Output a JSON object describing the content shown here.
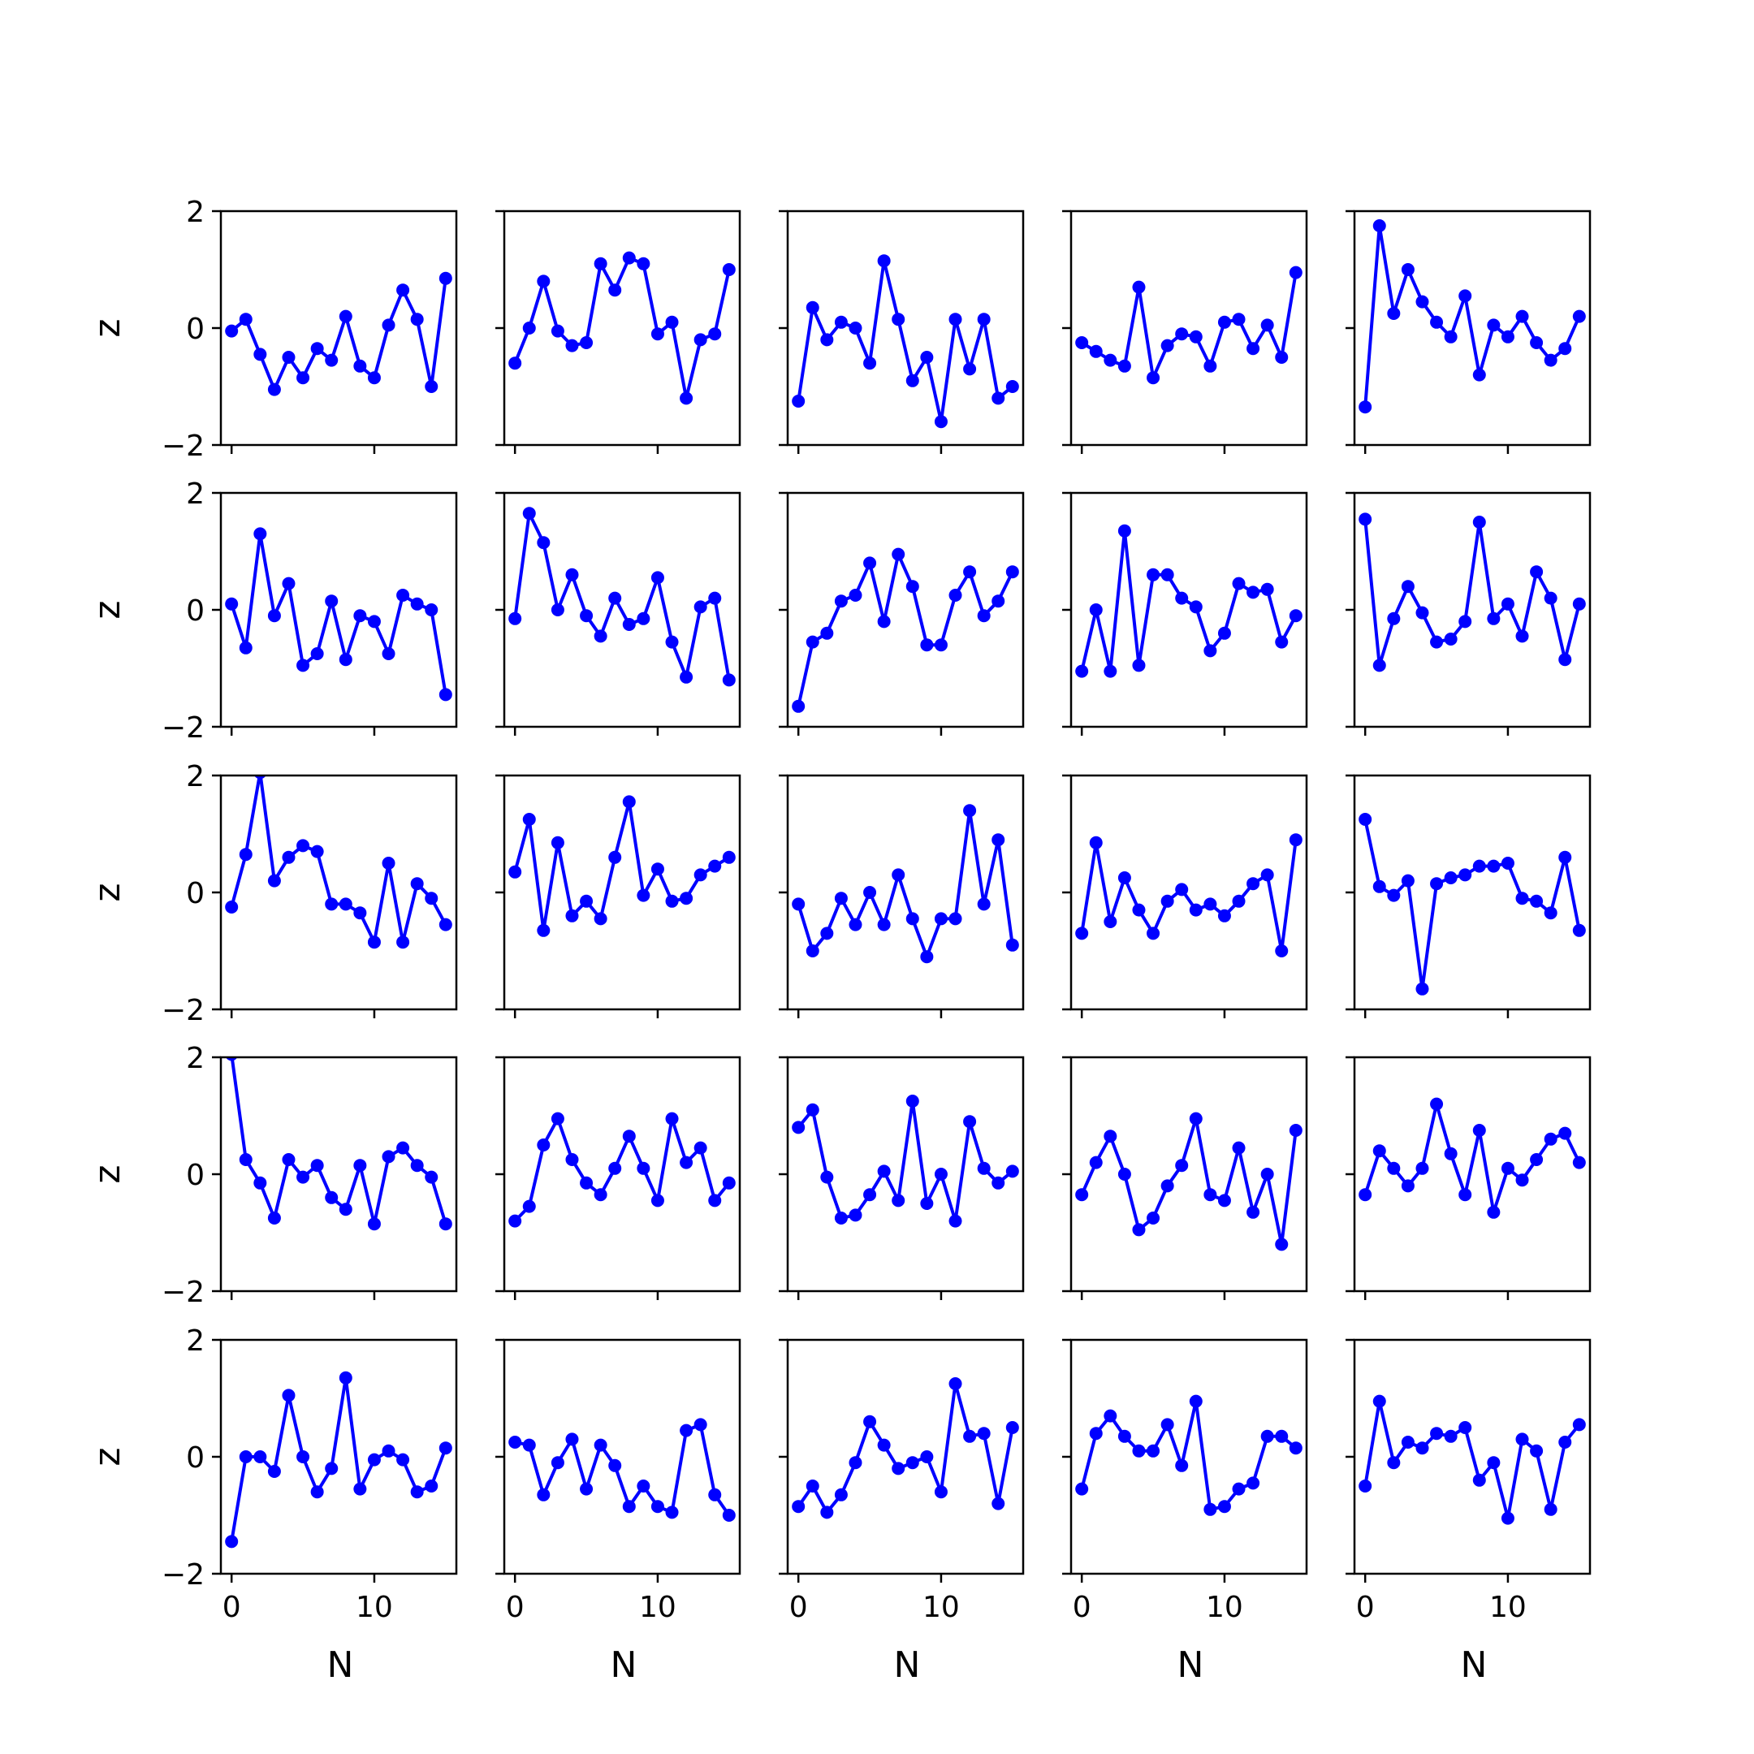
{
  "chart_data": {
    "type": "line",
    "layout": {
      "rows": 5,
      "cols": 5,
      "sharex": true,
      "sharey": true
    },
    "xlabel": "N",
    "ylabel": "z",
    "xlim": [
      -0.75,
      15.75
    ],
    "ylim": [
      -2,
      2
    ],
    "xticks": [
      0,
      10
    ],
    "xtick_labels": [
      "0",
      "10"
    ],
    "yticks": [
      -2,
      0,
      2
    ],
    "ytick_labels": [
      "−2",
      "0",
      "2"
    ],
    "x": [
      0,
      1,
      2,
      3,
      4,
      5,
      6,
      7,
      8,
      9,
      10,
      11,
      12,
      13,
      14,
      15
    ],
    "color": "#0000ff",
    "marker": "circle",
    "grid": false,
    "panels": [
      {
        "row": 1,
        "col": 1,
        "values": [
          -0.05,
          0.15,
          -0.45,
          -1.05,
          -0.5,
          -0.85,
          -0.35,
          -0.55,
          0.2,
          -0.65,
          -0.85,
          0.05,
          0.65,
          0.15,
          -1.0,
          0.85
        ]
      },
      {
        "row": 1,
        "col": 2,
        "values": [
          -0.6,
          0.0,
          0.8,
          -0.05,
          -0.3,
          -0.25,
          1.1,
          0.65,
          1.2,
          1.1,
          -0.1,
          0.1,
          -1.2,
          -0.2,
          -0.1,
          1.0
        ]
      },
      {
        "row": 1,
        "col": 3,
        "values": [
          -1.25,
          0.35,
          -0.2,
          0.1,
          0.0,
          -0.6,
          1.15,
          0.15,
          -0.9,
          -0.5,
          -1.6,
          0.15,
          -0.7,
          0.15,
          -1.2,
          -1.0
        ]
      },
      {
        "row": 1,
        "col": 4,
        "values": [
          -0.25,
          -0.4,
          -0.55,
          -0.65,
          0.7,
          -0.85,
          -0.3,
          -0.1,
          -0.15,
          -0.65,
          0.1,
          0.15,
          -0.35,
          0.05,
          -0.5,
          0.95
        ]
      },
      {
        "row": 1,
        "col": 5,
        "values": [
          -1.35,
          1.75,
          0.25,
          1.0,
          0.45,
          0.1,
          -0.15,
          0.55,
          -0.8,
          0.05,
          -0.15,
          0.2,
          -0.25,
          -0.55,
          -0.35,
          0.2
        ]
      },
      {
        "row": 2,
        "col": 1,
        "values": [
          0.1,
          -0.65,
          1.3,
          -0.1,
          0.45,
          -0.95,
          -0.75,
          0.15,
          -0.85,
          -0.1,
          -0.2,
          -0.75,
          0.25,
          0.1,
          0.0,
          -1.45
        ]
      },
      {
        "row": 2,
        "col": 2,
        "values": [
          -0.15,
          1.65,
          1.15,
          0.0,
          0.6,
          -0.1,
          -0.45,
          0.2,
          -0.25,
          -0.15,
          0.55,
          -0.55,
          -1.15,
          0.05,
          0.2,
          -1.2
        ]
      },
      {
        "row": 2,
        "col": 3,
        "values": [
          -1.65,
          -0.55,
          -0.4,
          0.15,
          0.25,
          0.8,
          -0.2,
          0.95,
          0.4,
          -0.6,
          -0.6,
          0.25,
          0.65,
          -0.1,
          0.15,
          0.65
        ]
      },
      {
        "row": 2,
        "col": 4,
        "values": [
          -1.05,
          0.0,
          -1.05,
          1.35,
          -0.95,
          0.6,
          0.6,
          0.2,
          0.05,
          -0.7,
          -0.4,
          0.45,
          0.3,
          0.35,
          -0.55,
          -0.1
        ]
      },
      {
        "row": 2,
        "col": 5,
        "values": [
          1.55,
          -0.95,
          -0.15,
          0.4,
          -0.05,
          -0.55,
          -0.5,
          -0.2,
          1.5,
          -0.15,
          0.1,
          -0.45,
          0.65,
          0.2,
          -0.85,
          0.1
        ]
      },
      {
        "row": 3,
        "col": 1,
        "values": [
          -0.25,
          0.65,
          2.05,
          0.2,
          0.6,
          0.8,
          0.7,
          -0.2,
          -0.2,
          -0.35,
          -0.85,
          0.5,
          -0.85,
          0.15,
          -0.1,
          -0.55
        ]
      },
      {
        "row": 3,
        "col": 2,
        "values": [
          0.35,
          1.25,
          -0.65,
          0.85,
          -0.4,
          -0.15,
          -0.45,
          0.6,
          1.55,
          -0.05,
          0.4,
          -0.15,
          -0.1,
          0.3,
          0.45,
          0.6
        ]
      },
      {
        "row": 3,
        "col": 3,
        "values": [
          -0.2,
          -1.0,
          -0.7,
          -0.1,
          -0.55,
          0.0,
          -0.55,
          0.3,
          -0.45,
          -1.1,
          -0.45,
          -0.45,
          1.4,
          -0.2,
          0.9,
          -0.9
        ]
      },
      {
        "row": 3,
        "col": 4,
        "values": [
          -0.7,
          0.85,
          -0.5,
          0.25,
          -0.3,
          -0.7,
          -0.15,
          0.05,
          -0.3,
          -0.2,
          -0.4,
          -0.15,
          0.15,
          0.3,
          -1.0,
          0.9
        ]
      },
      {
        "row": 3,
        "col": 5,
        "values": [
          1.25,
          0.1,
          -0.05,
          0.2,
          -1.65,
          0.15,
          0.25,
          0.3,
          0.45,
          0.45,
          0.5,
          -0.1,
          -0.15,
          -0.35,
          0.6,
          -0.65
        ]
      },
      {
        "row": 4,
        "col": 1,
        "values": [
          2.05,
          0.25,
          -0.15,
          -0.75,
          0.25,
          -0.05,
          0.15,
          -0.4,
          -0.6,
          0.15,
          -0.85,
          0.3,
          0.45,
          0.15,
          -0.05,
          -0.85
        ]
      },
      {
        "row": 4,
        "col": 2,
        "values": [
          -0.8,
          -0.55,
          0.5,
          0.95,
          0.25,
          -0.15,
          -0.35,
          0.1,
          0.65,
          0.1,
          -0.45,
          0.95,
          0.2,
          0.45,
          -0.45,
          -0.15
        ]
      },
      {
        "row": 4,
        "col": 3,
        "values": [
          0.8,
          1.1,
          -0.05,
          -0.75,
          -0.7,
          -0.35,
          0.05,
          -0.45,
          1.25,
          -0.5,
          0.0,
          -0.8,
          0.9,
          0.1,
          -0.15,
          0.05
        ]
      },
      {
        "row": 4,
        "col": 4,
        "values": [
          -0.35,
          0.2,
          0.65,
          0.0,
          -0.95,
          -0.75,
          -0.2,
          0.15,
          0.95,
          -0.35,
          -0.45,
          0.45,
          -0.65,
          0.0,
          -1.2,
          0.75
        ]
      },
      {
        "row": 4,
        "col": 5,
        "values": [
          -0.35,
          0.4,
          0.1,
          -0.2,
          0.1,
          1.2,
          0.35,
          -0.35,
          0.75,
          -0.65,
          0.1,
          -0.1,
          0.25,
          0.6,
          0.7,
          0.2
        ]
      },
      {
        "row": 5,
        "col": 1,
        "values": [
          -1.45,
          0.0,
          0.0,
          -0.25,
          1.05,
          0.0,
          -0.6,
          -0.2,
          1.35,
          -0.55,
          -0.05,
          0.1,
          -0.05,
          -0.6,
          -0.5,
          0.15
        ]
      },
      {
        "row": 5,
        "col": 2,
        "values": [
          0.25,
          0.2,
          -0.65,
          -0.1,
          0.3,
          -0.55,
          0.2,
          -0.15,
          -0.85,
          -0.5,
          -0.85,
          -0.95,
          0.45,
          0.55,
          -0.65,
          -1.0
        ]
      },
      {
        "row": 5,
        "col": 3,
        "values": [
          -0.85,
          -0.5,
          -0.95,
          -0.65,
          -0.1,
          0.6,
          0.2,
          -0.2,
          -0.1,
          0.0,
          -0.6,
          1.25,
          0.35,
          0.4,
          -0.8,
          0.5
        ]
      },
      {
        "row": 5,
        "col": 4,
        "values": [
          -0.55,
          0.4,
          0.7,
          0.35,
          0.1,
          0.1,
          0.55,
          -0.15,
          0.95,
          -0.9,
          -0.85,
          -0.55,
          -0.45,
          0.35,
          0.35,
          0.15
        ]
      },
      {
        "row": 5,
        "col": 5,
        "values": [
          -0.5,
          0.95,
          -0.1,
          0.25,
          0.15,
          0.4,
          0.35,
          0.5,
          -0.4,
          -0.1,
          -1.05,
          0.3,
          0.1,
          -0.9,
          0.25,
          0.55
        ]
      }
    ]
  }
}
